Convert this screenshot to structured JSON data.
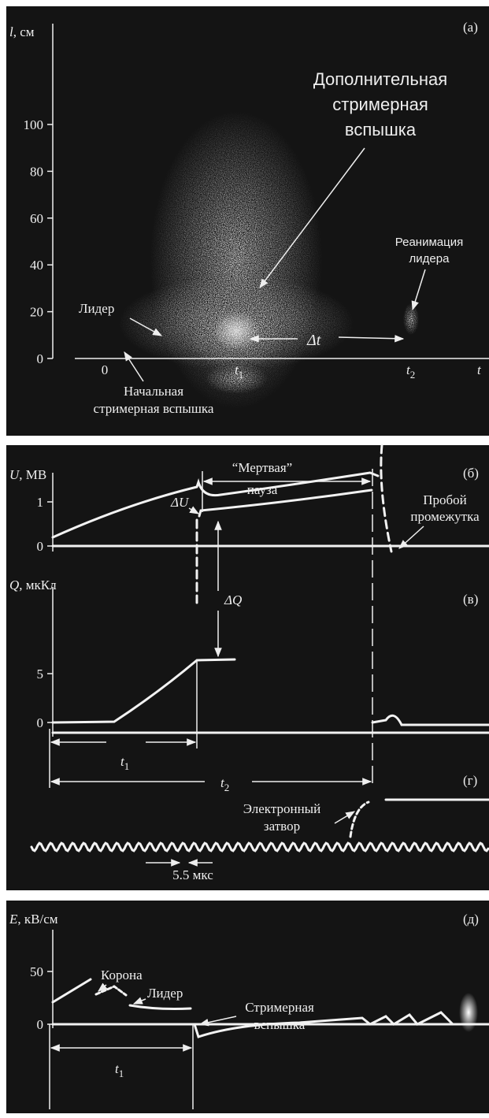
{
  "panel_a": {
    "label": "(а)",
    "y_axis": {
      "symbol": "l",
      "unit": ", см",
      "ticks": [
        0,
        20,
        40,
        60,
        80,
        100
      ]
    },
    "x_axis": {
      "origin": "0",
      "t1": {
        "symbol": "t",
        "sub": "1"
      },
      "t2": {
        "symbol": "t",
        "sub": "2"
      },
      "end": "t"
    },
    "annotations": {
      "additional_flash": [
        "Дополнительная",
        "стримерная",
        "вспышка"
      ],
      "leader_revival": [
        "Реанимация",
        "лидера"
      ],
      "leader": "Лидер",
      "initial_flash": [
        "Начальная",
        "стримерная вспышка"
      ],
      "delta_t": "Δt"
    }
  },
  "panel_b": {
    "label": "(б)",
    "y_axis": {
      "symbol": "U",
      "unit": ", МВ",
      "ticks": [
        0,
        1
      ]
    },
    "dead_pause": [
      "“Мертвая”",
      "пауза"
    ],
    "delta_u": "ΔU",
    "breakdown": [
      "Пробой",
      "промежутка"
    ]
  },
  "panel_v": {
    "label": "(в)",
    "y_axis": {
      "symbol": "Q",
      "unit": ", мкКл",
      "ticks": [
        0,
        5
      ]
    },
    "delta_q": "ΔQ",
    "t1": {
      "symbol": "t",
      "sub": "1"
    },
    "t2": {
      "symbol": "t",
      "sub": "2"
    }
  },
  "panel_g": {
    "label": "(г)",
    "gate": [
      "Электронный",
      "затвор"
    ],
    "period": "5.5 мкс"
  },
  "panel_d": {
    "label": "(д)",
    "y_axis": {
      "symbol": "E",
      "unit": ", кВ/см",
      "ticks": [
        0,
        50
      ]
    },
    "corona": "Корона",
    "leader": "Лидер",
    "streamer_flash": [
      "Стримерная",
      "вспышка"
    ],
    "t1": {
      "symbol": "t",
      "sub": "1"
    }
  }
}
